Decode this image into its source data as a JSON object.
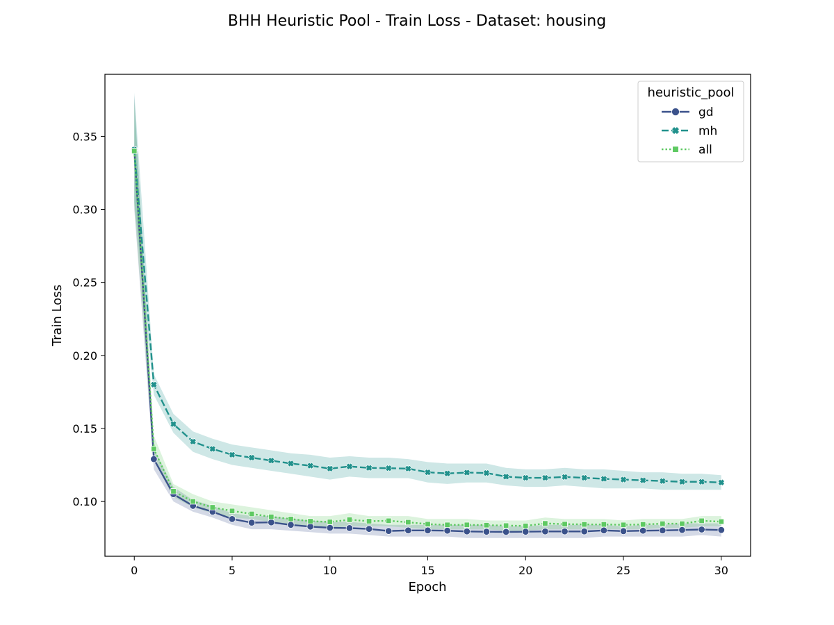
{
  "chart_data": {
    "type": "line",
    "title": "BHH Heuristic Pool - Train Loss - Dataset: housing",
    "xlabel": "Epoch",
    "ylabel": "Train Loss",
    "xlim": [
      -1.5,
      31.5
    ],
    "ylim": [
      0.0625,
      0.3925
    ],
    "xticks": [
      0,
      5,
      10,
      15,
      20,
      25,
      30
    ],
    "yticks": [
      0.1,
      0.15,
      0.2,
      0.25,
      0.3,
      0.35
    ],
    "xtick_labels": [
      "0",
      "5",
      "10",
      "15",
      "20",
      "25",
      "30"
    ],
    "ytick_labels": [
      "0.10",
      "0.15",
      "0.20",
      "0.25",
      "0.30",
      "0.35"
    ],
    "grid": false,
    "legend": {
      "title": "heuristic_pool",
      "placement": "top-right"
    },
    "x": [
      0,
      1,
      2,
      3,
      4,
      5,
      6,
      7,
      8,
      9,
      10,
      11,
      12,
      13,
      14,
      15,
      16,
      17,
      18,
      19,
      20,
      21,
      22,
      23,
      24,
      25,
      26,
      27,
      28,
      29,
      30
    ],
    "series": [
      {
        "name": "gd",
        "color": "#3b528b",
        "band_color": "#3b528b",
        "marker": "circle",
        "dash": "solid",
        "values": [
          0.341,
          0.129,
          0.105,
          0.097,
          0.093,
          0.088,
          0.0855,
          0.0857,
          0.084,
          0.0828,
          0.082,
          0.0818,
          0.0812,
          0.0798,
          0.0802,
          0.0802,
          0.08,
          0.0795,
          0.0793,
          0.0792,
          0.0793,
          0.0795,
          0.0795,
          0.0795,
          0.0802,
          0.0797,
          0.08,
          0.0802,
          0.0805,
          0.0808,
          0.0805
        ],
        "lower": [
          0.3,
          0.122,
          0.1,
          0.093,
          0.089,
          0.084,
          0.081,
          0.081,
          0.08,
          0.079,
          0.078,
          0.078,
          0.077,
          0.076,
          0.076,
          0.076,
          0.076,
          0.075,
          0.075,
          0.075,
          0.075,
          0.075,
          0.075,
          0.075,
          0.076,
          0.076,
          0.076,
          0.076,
          0.076,
          0.077,
          0.076
        ],
        "upper": [
          0.378,
          0.136,
          0.11,
          0.101,
          0.097,
          0.092,
          0.09,
          0.09,
          0.088,
          0.087,
          0.086,
          0.086,
          0.085,
          0.084,
          0.084,
          0.084,
          0.084,
          0.084,
          0.084,
          0.083,
          0.083,
          0.084,
          0.084,
          0.084,
          0.084,
          0.083,
          0.084,
          0.084,
          0.085,
          0.085,
          0.085
        ]
      },
      {
        "name": "mh",
        "color": "#21918c",
        "band_color": "#21918c",
        "marker": "x",
        "dash": "dashed",
        "values": [
          0.341,
          0.18,
          0.153,
          0.141,
          0.136,
          0.132,
          0.13,
          0.128,
          0.126,
          0.1245,
          0.1225,
          0.124,
          0.123,
          0.1228,
          0.1225,
          0.12,
          0.1192,
          0.1198,
          0.1195,
          0.117,
          0.1162,
          0.1162,
          0.1168,
          0.1162,
          0.1155,
          0.115,
          0.1145,
          0.114,
          0.1135,
          0.1135,
          0.113
        ],
        "lower": [
          0.305,
          0.173,
          0.147,
          0.134,
          0.129,
          0.125,
          0.123,
          0.121,
          0.119,
          0.117,
          0.115,
          0.117,
          0.116,
          0.116,
          0.116,
          0.113,
          0.112,
          0.113,
          0.113,
          0.111,
          0.11,
          0.11,
          0.111,
          0.11,
          0.109,
          0.109,
          0.109,
          0.108,
          0.108,
          0.108,
          0.108
        ],
        "upper": [
          0.38,
          0.187,
          0.16,
          0.148,
          0.143,
          0.139,
          0.137,
          0.135,
          0.133,
          0.132,
          0.13,
          0.131,
          0.13,
          0.13,
          0.129,
          0.127,
          0.126,
          0.126,
          0.126,
          0.123,
          0.122,
          0.122,
          0.123,
          0.122,
          0.122,
          0.121,
          0.12,
          0.12,
          0.119,
          0.119,
          0.118
        ]
      },
      {
        "name": "all",
        "color": "#5ec962",
        "band_color": "#5ec962",
        "marker": "square",
        "dash": "dotted",
        "values": [
          0.34,
          0.136,
          0.107,
          0.1,
          0.096,
          0.0935,
          0.0915,
          0.0895,
          0.088,
          0.0865,
          0.086,
          0.0875,
          0.0865,
          0.0868,
          0.0858,
          0.0845,
          0.084,
          0.084,
          0.0838,
          0.0835,
          0.0833,
          0.085,
          0.0845,
          0.0843,
          0.0843,
          0.084,
          0.0843,
          0.0848,
          0.0848,
          0.0868,
          0.0862
        ],
        "lower": [
          0.303,
          0.128,
          0.103,
          0.096,
          0.092,
          0.089,
          0.088,
          0.086,
          0.084,
          0.083,
          0.082,
          0.083,
          0.083,
          0.083,
          0.082,
          0.081,
          0.081,
          0.081,
          0.081,
          0.08,
          0.08,
          0.081,
          0.081,
          0.081,
          0.081,
          0.081,
          0.081,
          0.082,
          0.082,
          0.083,
          0.083
        ],
        "upper": [
          0.375,
          0.145,
          0.112,
          0.105,
          0.1,
          0.098,
          0.096,
          0.094,
          0.092,
          0.09,
          0.09,
          0.092,
          0.09,
          0.09,
          0.09,
          0.088,
          0.088,
          0.088,
          0.087,
          0.087,
          0.087,
          0.089,
          0.088,
          0.088,
          0.088,
          0.087,
          0.088,
          0.088,
          0.088,
          0.09,
          0.09
        ]
      }
    ]
  }
}
